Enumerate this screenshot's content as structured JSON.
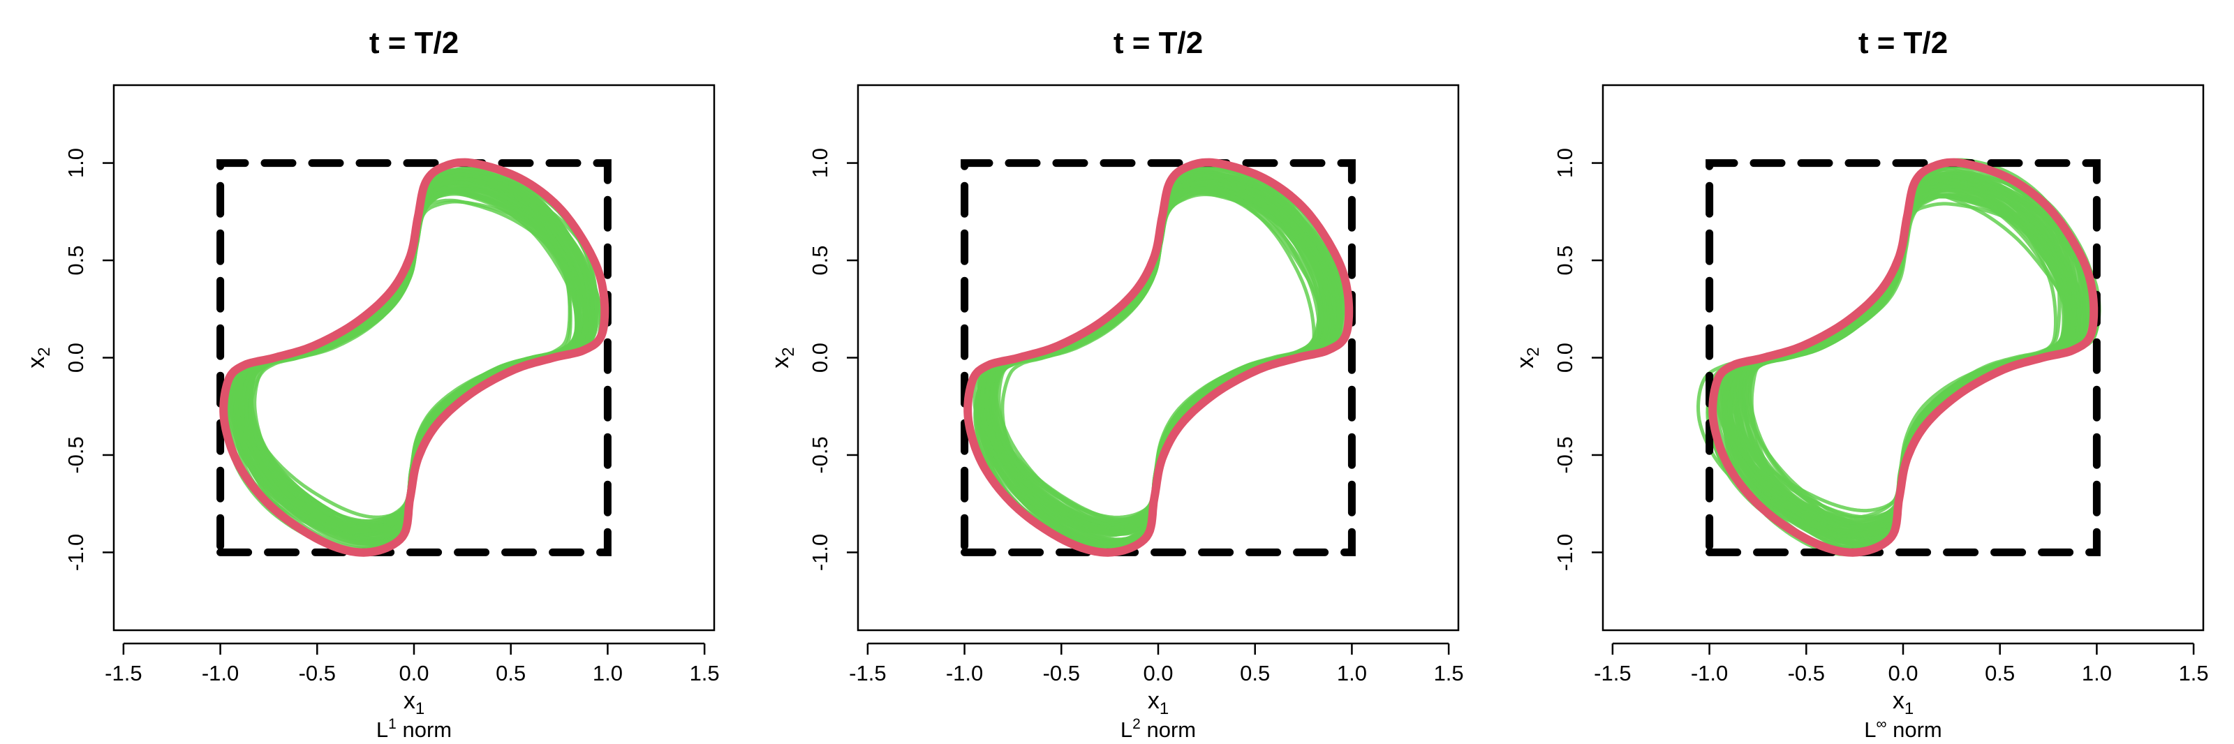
{
  "colors": {
    "bundle": "#61D04F",
    "reference": "#DF536B",
    "square": "#000000"
  },
  "chart_data": [
    {
      "type": "line",
      "title": "t = T/2",
      "xlabel": "x",
      "xlabel_sub": "1",
      "ylabel": "x",
      "ylabel_sub": "2",
      "norm_label": {
        "base": "L",
        "sup": "1",
        "rest": " norm"
      },
      "xlim": [
        -1.55,
        1.55
      ],
      "ylim": [
        -1.4,
        1.4
      ],
      "xticks": [
        "-1.5",
        "-1.0",
        "-0.5",
        "0.0",
        "0.5",
        "1.0",
        "1.5"
      ],
      "yticks": [
        "-1.0",
        "-0.5",
        "0.0",
        "0.5",
        "1.0"
      ],
      "reference_square": {
        "x": [
          -1,
          1,
          1,
          -1,
          -1
        ],
        "y": [
          -1,
          -1,
          1,
          1,
          -1
        ],
        "style": "dashed"
      },
      "series": [
        {
          "role": "green-bundle",
          "count": 60,
          "spread": 0.055
        },
        {
          "role": "red-curve"
        }
      ],
      "grid": false
    },
    {
      "type": "line",
      "title": "t = T/2",
      "xlabel": "x",
      "xlabel_sub": "1",
      "ylabel": "x",
      "ylabel_sub": "2",
      "norm_label": {
        "base": "L",
        "sup": "2",
        "rest": " norm"
      },
      "xlim": [
        -1.55,
        1.55
      ],
      "ylim": [
        -1.4,
        1.4
      ],
      "xticks": [
        "-1.5",
        "-1.0",
        "-0.5",
        "0.0",
        "0.5",
        "1.0",
        "1.5"
      ],
      "yticks": [
        "-1.0",
        "-0.5",
        "0.0",
        "0.5",
        "1.0"
      ],
      "reference_square": {
        "x": [
          -1,
          1,
          1,
          -1,
          -1
        ],
        "y": [
          -1,
          -1,
          1,
          1,
          -1
        ],
        "style": "dashed"
      },
      "series": [
        {
          "role": "green-bundle",
          "count": 60,
          "spread": 0.045
        },
        {
          "role": "red-curve"
        }
      ],
      "grid": false
    },
    {
      "type": "line",
      "title": "t = T/2",
      "xlabel": "x",
      "xlabel_sub": "1",
      "ylabel": "x",
      "ylabel_sub": "2",
      "norm_label": {
        "base": "L",
        "sup": "∞",
        "rest": " norm"
      },
      "xlim": [
        -1.55,
        1.55
      ],
      "ylim": [
        -1.4,
        1.4
      ],
      "xticks": [
        "-1.5",
        "-1.0",
        "-0.5",
        "0.0",
        "0.5",
        "1.0",
        "1.5"
      ],
      "yticks": [
        "-1.0",
        "-0.5",
        "0.0",
        "0.5",
        "1.0"
      ],
      "reference_square": {
        "x": [
          -1,
          1,
          1,
          -1,
          -1
        ],
        "y": [
          -1,
          -1,
          1,
          1,
          -1
        ],
        "style": "dashed"
      },
      "series": [
        {
          "role": "green-bundle",
          "count": 60,
          "spread": 0.065
        },
        {
          "role": "red-curve"
        }
      ],
      "grid": false
    }
  ]
}
